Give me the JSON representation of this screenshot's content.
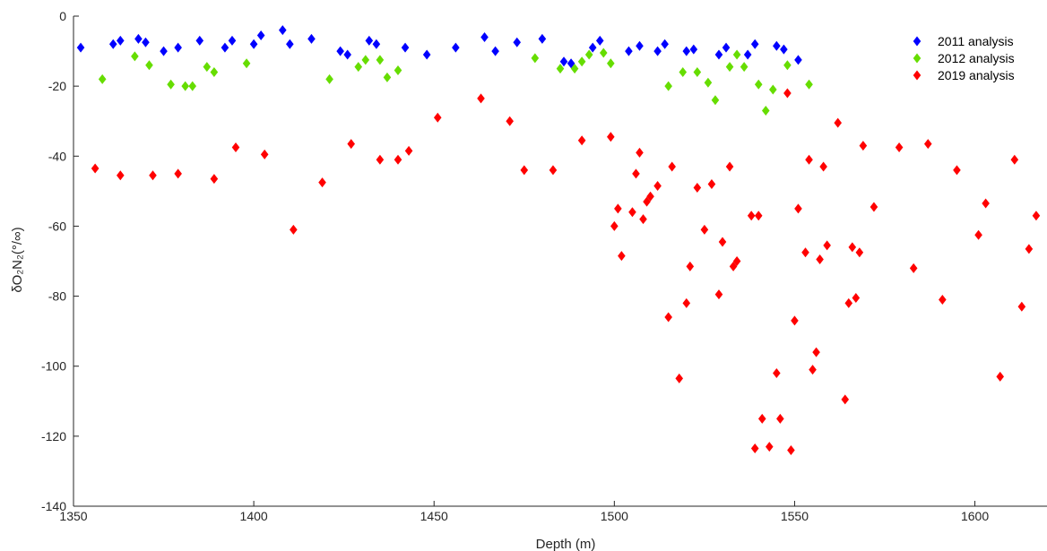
{
  "chart_data": {
    "type": "scatter",
    "xlabel": "Depth (m)",
    "ylabel": "δO₂N₂(°/∞)",
    "xlim": [
      1350,
      1620
    ],
    "ylim": [
      -140,
      0
    ],
    "xticks": [
      1350,
      1400,
      1450,
      1500,
      1550,
      1600
    ],
    "yticks": [
      0,
      -20,
      -40,
      -60,
      -80,
      -100,
      -120,
      -140
    ],
    "grid": false,
    "legend_position": "top-right",
    "marker": "diamond",
    "series": [
      {
        "name": "2011 analysis",
        "color": "#0000ff",
        "points": [
          [
            1352,
            -9
          ],
          [
            1361,
            -8
          ],
          [
            1363,
            -7
          ],
          [
            1368,
            -6.5
          ],
          [
            1370,
            -7.5
          ],
          [
            1375,
            -10
          ],
          [
            1379,
            -9
          ],
          [
            1385,
            -7
          ],
          [
            1392,
            -9
          ],
          [
            1394,
            -7
          ],
          [
            1400,
            -8
          ],
          [
            1402,
            -5.5
          ],
          [
            1408,
            -4
          ],
          [
            1410,
            -8
          ],
          [
            1416,
            -6.5
          ],
          [
            1424,
            -10
          ],
          [
            1426,
            -11
          ],
          [
            1432,
            -7
          ],
          [
            1434,
            -8
          ],
          [
            1442,
            -9
          ],
          [
            1448,
            -11
          ],
          [
            1456,
            -9
          ],
          [
            1464,
            -6
          ],
          [
            1467,
            -10
          ],
          [
            1473,
            -7.5
          ],
          [
            1480,
            -6.5
          ],
          [
            1486,
            -13
          ],
          [
            1488,
            -13.5
          ],
          [
            1494,
            -9
          ],
          [
            1496,
            -7
          ],
          [
            1504,
            -10
          ],
          [
            1507,
            -8.5
          ],
          [
            1512,
            -10
          ],
          [
            1514,
            -8
          ],
          [
            1520,
            -10
          ],
          [
            1522,
            -9.5
          ],
          [
            1529,
            -11
          ],
          [
            1531,
            -9
          ],
          [
            1537,
            -11
          ],
          [
            1539,
            -8
          ],
          [
            1545,
            -8.5
          ],
          [
            1547,
            -9.5
          ],
          [
            1551,
            -12.5
          ]
        ]
      },
      {
        "name": "2012 analysis",
        "color": "#66dd00",
        "points": [
          [
            1358,
            -18
          ],
          [
            1367,
            -11.5
          ],
          [
            1371,
            -14
          ],
          [
            1377,
            -19.5
          ],
          [
            1381,
            -20
          ],
          [
            1383,
            -20
          ],
          [
            1387,
            -14.5
          ],
          [
            1389,
            -16
          ],
          [
            1398,
            -13.5
          ],
          [
            1421,
            -18
          ],
          [
            1429,
            -14.5
          ],
          [
            1431,
            -12.5
          ],
          [
            1435,
            -12.5
          ],
          [
            1437,
            -17.5
          ],
          [
            1440,
            -15.5
          ],
          [
            1478,
            -12
          ],
          [
            1485,
            -15
          ],
          [
            1489,
            -15
          ],
          [
            1491,
            -13
          ],
          [
            1493,
            -11
          ],
          [
            1497,
            -10.5
          ],
          [
            1499,
            -13.5
          ],
          [
            1515,
            -20
          ],
          [
            1519,
            -16
          ],
          [
            1523,
            -16
          ],
          [
            1526,
            -19
          ],
          [
            1528,
            -24
          ],
          [
            1532,
            -14.5
          ],
          [
            1534,
            -11
          ],
          [
            1536,
            -14.5
          ],
          [
            1540,
            -19.5
          ],
          [
            1542,
            -27
          ],
          [
            1544,
            -21
          ],
          [
            1548,
            -14
          ],
          [
            1554,
            -19.5
          ]
        ]
      },
      {
        "name": "2019 analysis",
        "color": "#ff0000",
        "points": [
          [
            1356,
            -43.5
          ],
          [
            1363,
            -45.5
          ],
          [
            1372,
            -45.5
          ],
          [
            1379,
            -45
          ],
          [
            1389,
            -46.5
          ],
          [
            1395,
            -37.5
          ],
          [
            1403,
            -39.5
          ],
          [
            1411,
            -61
          ],
          [
            1419,
            -47.5
          ],
          [
            1427,
            -36.5
          ],
          [
            1435,
            -41
          ],
          [
            1440,
            -41
          ],
          [
            1443,
            -38.5
          ],
          [
            1451,
            -29
          ],
          [
            1463,
            -23.5
          ],
          [
            1471,
            -30
          ],
          [
            1475,
            -44
          ],
          [
            1483,
            -44
          ],
          [
            1491,
            -35.5
          ],
          [
            1499,
            -34.5
          ],
          [
            1500,
            -60
          ],
          [
            1501,
            -55
          ],
          [
            1502,
            -68.5
          ],
          [
            1505,
            -56
          ],
          [
            1506,
            -45
          ],
          [
            1507,
            -39
          ],
          [
            1508,
            -58
          ],
          [
            1509,
            -53
          ],
          [
            1510,
            -51.5
          ],
          [
            1512,
            -48.5
          ],
          [
            1515,
            -86
          ],
          [
            1516,
            -43
          ],
          [
            1518,
            -103.5
          ],
          [
            1520,
            -82
          ],
          [
            1521,
            -71.5
          ],
          [
            1523,
            -49
          ],
          [
            1525,
            -61
          ],
          [
            1527,
            -48
          ],
          [
            1529,
            -79.5
          ],
          [
            1530,
            -64.5
          ],
          [
            1532,
            -43
          ],
          [
            1533,
            -71.5
          ],
          [
            1534,
            -70
          ],
          [
            1538,
            -57
          ],
          [
            1539,
            -123.5
          ],
          [
            1540,
            -57
          ],
          [
            1541,
            -115
          ],
          [
            1543,
            -123
          ],
          [
            1545,
            -102
          ],
          [
            1546,
            -115
          ],
          [
            1548,
            -22
          ],
          [
            1549,
            -124
          ],
          [
            1550,
            -87
          ],
          [
            1551,
            -55
          ],
          [
            1553,
            -67.5
          ],
          [
            1554,
            -41
          ],
          [
            1555,
            -101
          ],
          [
            1556,
            -96
          ],
          [
            1557,
            -69.5
          ],
          [
            1558,
            -43
          ],
          [
            1559,
            -65.5
          ],
          [
            1562,
            -30.5
          ],
          [
            1564,
            -109.5
          ],
          [
            1565,
            -82
          ],
          [
            1566,
            -66
          ],
          [
            1567,
            -80.5
          ],
          [
            1568,
            -67.5
          ],
          [
            1569,
            -37
          ],
          [
            1572,
            -54.5
          ],
          [
            1579,
            -37.5
          ],
          [
            1583,
            -72
          ],
          [
            1587,
            -36.5
          ],
          [
            1591,
            -81
          ],
          [
            1595,
            -44
          ],
          [
            1601,
            -62.5
          ],
          [
            1603,
            -53.5
          ],
          [
            1607,
            -103
          ],
          [
            1611,
            -41
          ],
          [
            1613,
            -83
          ],
          [
            1615,
            -66.5
          ],
          [
            1617,
            -57
          ]
        ]
      }
    ]
  }
}
